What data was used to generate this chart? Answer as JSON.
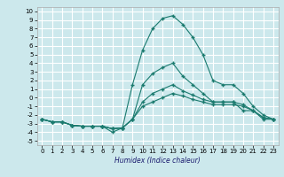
{
  "background_color": "#cce8ec",
  "grid_color": "#ffffff",
  "line_color": "#1a7a6e",
  "xlabel": "Humidex (Indice chaleur)",
  "xlim": [
    -0.5,
    23.5
  ],
  "ylim": [
    -5.5,
    10.5
  ],
  "xticks": [
    0,
    1,
    2,
    3,
    4,
    5,
    6,
    7,
    8,
    9,
    10,
    11,
    12,
    13,
    14,
    15,
    16,
    17,
    18,
    19,
    20,
    21,
    22,
    23
  ],
  "yticks": [
    -5,
    -4,
    -3,
    -2,
    -1,
    0,
    1,
    2,
    3,
    4,
    5,
    6,
    7,
    8,
    9,
    10
  ],
  "series1_x": [
    0,
    1,
    2,
    3,
    4,
    5,
    6,
    7,
    8,
    9,
    10,
    11,
    12,
    13,
    14,
    15,
    16,
    17,
    18,
    19,
    20,
    21,
    22,
    23
  ],
  "series1_y": [
    -2.5,
    -2.8,
    -2.8,
    -3.2,
    -3.3,
    -3.3,
    -3.3,
    -4.0,
    -3.5,
    1.5,
    5.5,
    8.0,
    9.2,
    9.5,
    8.5,
    7.0,
    5.0,
    2.0,
    1.5,
    1.5,
    0.5,
    -1.0,
    -2.0,
    -2.5
  ],
  "series2_x": [
    0,
    1,
    2,
    3,
    4,
    5,
    6,
    7,
    8,
    9,
    10,
    11,
    12,
    13,
    14,
    15,
    16,
    17,
    18,
    19,
    20,
    21,
    22,
    23
  ],
  "series2_y": [
    -2.5,
    -2.8,
    -2.8,
    -3.2,
    -3.3,
    -3.3,
    -3.3,
    -3.6,
    -3.5,
    -2.5,
    1.5,
    2.8,
    3.5,
    4.0,
    2.5,
    1.5,
    0.5,
    -0.5,
    -0.5,
    -0.5,
    -1.5,
    -1.5,
    -2.5,
    -2.5
  ],
  "series3_x": [
    0,
    1,
    2,
    3,
    4,
    5,
    6,
    7,
    8,
    9,
    10,
    11,
    12,
    13,
    14,
    15,
    16,
    17,
    18,
    19,
    20,
    21,
    22,
    23
  ],
  "series3_y": [
    -2.5,
    -2.8,
    -2.8,
    -3.2,
    -3.3,
    -3.3,
    -3.3,
    -3.6,
    -3.5,
    -2.5,
    -0.5,
    0.5,
    1.0,
    1.5,
    0.8,
    0.3,
    -0.2,
    -0.5,
    -0.5,
    -0.5,
    -0.8,
    -1.5,
    -2.3,
    -2.5
  ],
  "series4_x": [
    0,
    1,
    2,
    3,
    4,
    5,
    6,
    7,
    8,
    9,
    10,
    11,
    12,
    13,
    14,
    15,
    16,
    17,
    18,
    19,
    20,
    21,
    22,
    23
  ],
  "series4_y": [
    -2.5,
    -2.8,
    -2.8,
    -3.2,
    -3.3,
    -3.3,
    -3.3,
    -3.6,
    -3.5,
    -2.5,
    -1.0,
    -0.5,
    0.0,
    0.5,
    0.2,
    -0.2,
    -0.5,
    -0.8,
    -0.8,
    -0.8,
    -1.0,
    -1.5,
    -2.3,
    -2.5
  ],
  "tick_fontsize": 5,
  "xlabel_fontsize": 5.5,
  "marker_size": 2.5,
  "line_width": 0.8
}
